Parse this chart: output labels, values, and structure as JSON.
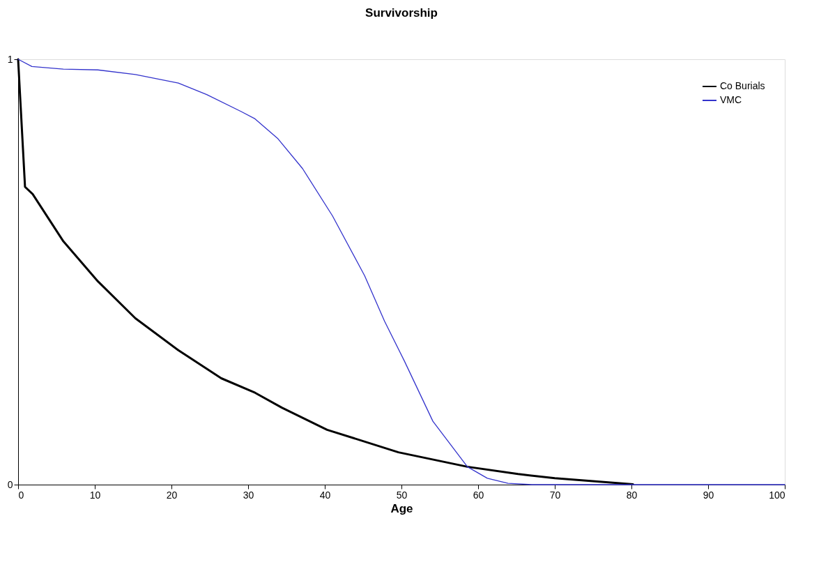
{
  "chart_data": {
    "type": "line",
    "title": "Survivorship",
    "xlabel": "Age",
    "xlim": [
      0,
      100
    ],
    "xticks": [
      0,
      10,
      20,
      30,
      40,
      50,
      60,
      70,
      80,
      90,
      100
    ],
    "ylim": [
      0,
      1
    ],
    "yticks": [
      0,
      1
    ],
    "grid": false,
    "legend": "top right",
    "marker": "none",
    "line_style": "solid",
    "series": [
      {
        "name": "Co Burials",
        "color": "#000000",
        "x": [
          0,
          0.9,
          1.9,
          5.9,
          10.4,
          15.3,
          20.9,
          26.5,
          30.9,
          34.4,
          40.3,
          49.6,
          58.6,
          65.2,
          70,
          80.2
        ],
        "values": [
          1,
          0.7,
          0.683,
          0.572,
          0.478,
          0.391,
          0.316,
          0.25,
          0.216,
          0.181,
          0.129,
          0.076,
          0.042,
          0.025,
          0.015,
          0.001
        ]
      },
      {
        "name": "VMC",
        "color": "#3333cc",
        "x": [
          0,
          1.8,
          5.9,
          10.4,
          15.3,
          20.9,
          24.6,
          29.1,
          30.9,
          33.9,
          37.1,
          41,
          45.2,
          47.8,
          50.4,
          54.1,
          58.6,
          61.2,
          63.9,
          67,
          80,
          100
        ],
        "values": [
          1,
          0.983,
          0.977,
          0.975,
          0.964,
          0.944,
          0.917,
          0.877,
          0.86,
          0.813,
          0.743,
          0.632,
          0.491,
          0.384,
          0.29,
          0.149,
          0.042,
          0.015,
          0.003,
          0,
          0,
          0
        ]
      }
    ]
  }
}
